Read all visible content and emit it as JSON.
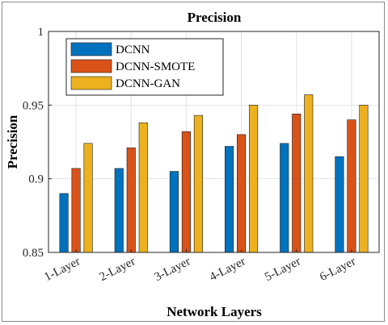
{
  "chart_data": {
    "type": "bar",
    "title": "Precision",
    "xlabel": "Network Layers",
    "ylabel": "Precision",
    "ylim": [
      0.85,
      1
    ],
    "yticks": [
      "0.85",
      "0.9",
      "0.95",
      "1"
    ],
    "categories": [
      "1-Layer",
      "2-Layer",
      "3-Layer",
      "4-Layer",
      "5-Layer",
      "6-Layer"
    ],
    "series": [
      {
        "name": "DCNN",
        "color": "#0072BD",
        "values": [
          0.89,
          0.907,
          0.905,
          0.922,
          0.924,
          0.915
        ]
      },
      {
        "name": "DCNN-SMOTE",
        "color": "#D95319",
        "values": [
          0.907,
          0.921,
          0.932,
          0.93,
          0.944,
          0.94
        ]
      },
      {
        "name": "DCNN-GAN",
        "color": "#EDB120",
        "values": [
          0.924,
          0.938,
          0.943,
          0.95,
          0.957,
          0.95
        ]
      }
    ],
    "grid": true,
    "legend_position": "top-left"
  }
}
